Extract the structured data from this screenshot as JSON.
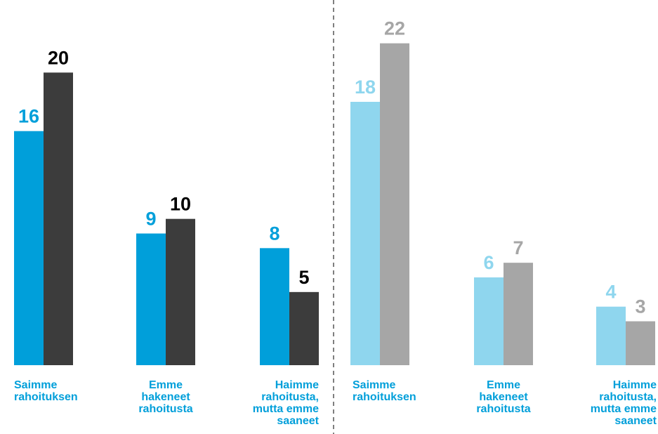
{
  "chart_data": [
    {
      "type": "bar",
      "categories": [
        "Saimme\nrahoituksen",
        "Emme\nhakeneet\nrahoitusta",
        "Haimme\nrahoitusta,\nmutta emme\nsaaneet"
      ],
      "series": [
        {
          "color": "#009fda",
          "values": [
            16,
            9,
            8
          ]
        },
        {
          "color": "#3c3c3c",
          "values": [
            20,
            10,
            5
          ]
        }
      ],
      "ylim": [
        0,
        24
      ]
    },
    {
      "type": "bar",
      "categories": [
        "Saimme\nrahoituksen",
        "Emme\nhakeneet\nrahoitusta",
        "Haimme\nrahoitusta,\nmutta emme\nsaaneet"
      ],
      "series": [
        {
          "color": "#8fd6ee",
          "values": [
            18,
            6,
            4
          ]
        },
        {
          "color": "#a6a6a6",
          "values": [
            22,
            7,
            3
          ]
        }
      ],
      "ylim": [
        0,
        24
      ]
    }
  ]
}
